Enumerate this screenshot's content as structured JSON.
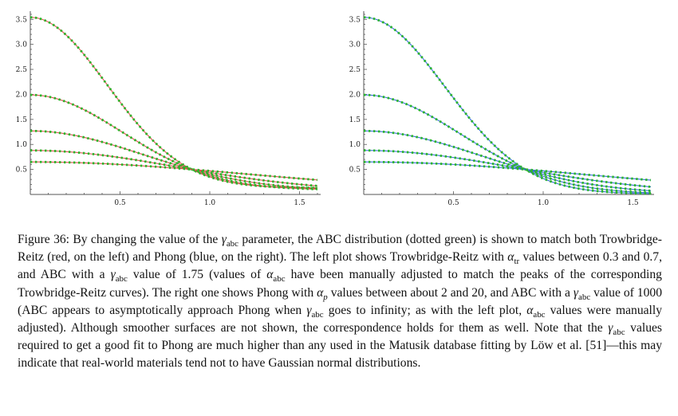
{
  "chart_data": [
    {
      "type": "line",
      "xlim": [
        0,
        1.6
      ],
      "ylim": [
        0,
        3.6
      ],
      "x_ticks": [
        "0.5",
        "1.0",
        "1.5"
      ],
      "y_ticks": [
        "0.5",
        "1.0",
        "1.5",
        "2.0",
        "2.5",
        "3.0",
        "3.5"
      ],
      "grid": false,
      "line_color": "#d9534f",
      "dots_color": "#2bb52b",
      "series": [
        {
          "peak": 3.54,
          "tail": 0.13
        },
        {
          "peak": 1.99,
          "tail": 0.09
        },
        {
          "peak": 1.27,
          "tail": 0.07
        },
        {
          "peak": 0.88,
          "tail": 0.05
        },
        {
          "peak": 0.65,
          "tail": 0.04
        }
      ]
    },
    {
      "type": "line",
      "xlim": [
        0,
        1.6
      ],
      "ylim": [
        0,
        3.6
      ],
      "x_ticks": [
        "0.5",
        "1.0",
        "1.5"
      ],
      "y_ticks": [
        "0.5",
        "1.0",
        "1.5",
        "2.0",
        "2.5",
        "3.0",
        "3.5"
      ],
      "grid": false,
      "line_color": "#3a6fd8",
      "dots_color": "#2bb52b",
      "series": [
        {
          "peak": 3.54,
          "tail": 0.01
        },
        {
          "peak": 1.99,
          "tail": 0.01
        },
        {
          "peak": 1.27,
          "tail": 0.01
        },
        {
          "peak": 0.88,
          "tail": 0.01
        },
        {
          "peak": 0.65,
          "tail": 0.02
        }
      ]
    }
  ],
  "caption": {
    "label": "Figure 36:",
    "t1": " By changing the value of the ",
    "t2": " parameter, the ABC distribution (dotted green) is shown to match both Trowbridge-Reitz (red, on the left) and Phong (blue, on the right). The left plot shows Trowbridge-Reitz with ",
    "t3": " values between 0.3 and 0.7, and ABC with a ",
    "t4": " value of 1.75 (values of ",
    "t5": " have been manually adjusted to match the peaks of the corresponding Trowbridge-Reitz curves). The right one shows Phong with ",
    "t6": " values between about 2 and 20, and ABC with a ",
    "t7": " value of 1000 (ABC appears to asymptotically approach Phong when ",
    "t8": " goes to infinity; as with the left plot, ",
    "t9": " values were manually adjusted). Although smoother surfaces are not shown, the correspondence holds for them as well. Note that the ",
    "t10": " values required to get a good fit to Phong are much higher than any used in the Matusik database fitting by Löw et al. [51]—this may indicate that real-world materials tend not to have Gaussian normal distributions.",
    "gamma": "γ",
    "alpha": "α",
    "sub_abc": "abc",
    "sub_tr": "tr",
    "sub_p": "p"
  }
}
